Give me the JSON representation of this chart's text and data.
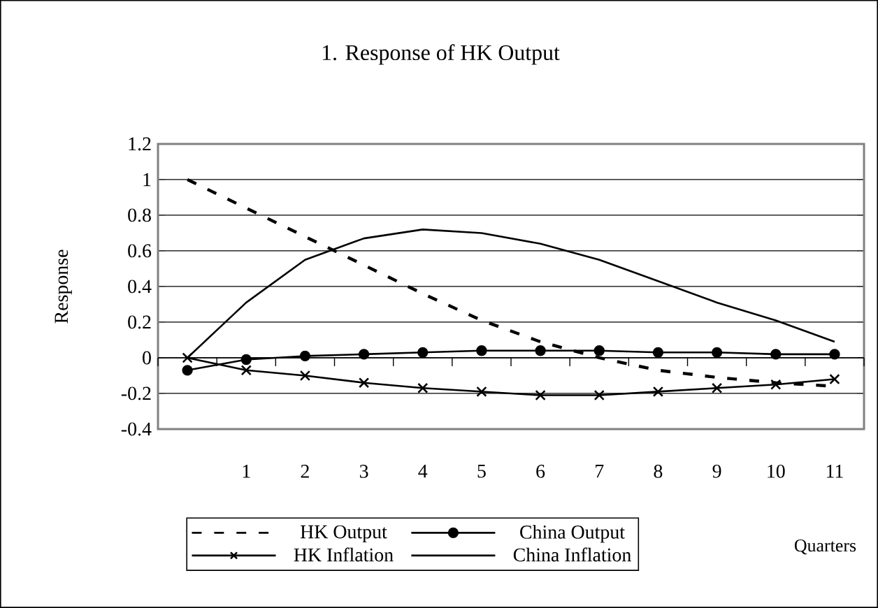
{
  "chart_data": {
    "type": "line",
    "title": "1. Response of HK Output",
    "xlabel": "Quarters",
    "ylabel": "Response",
    "categories": [
      null,
      "1",
      "2",
      "3",
      "4",
      "5",
      "6",
      "7",
      "8",
      "9",
      "10",
      "11"
    ],
    "series": [
      {
        "name": "HK Output",
        "color": "#000000",
        "line_style": "dashed",
        "marker": "none",
        "values": [
          1.0,
          0.84,
          0.68,
          0.52,
          0.36,
          0.21,
          0.09,
          0.0,
          -0.07,
          -0.11,
          -0.14,
          -0.16
        ]
      },
      {
        "name": "China Output",
        "color": "#000000",
        "line_style": "solid",
        "marker": "circle",
        "values": [
          -0.07,
          -0.01,
          0.01,
          0.02,
          0.03,
          0.04,
          0.04,
          0.04,
          0.03,
          0.03,
          0.02,
          0.02
        ]
      },
      {
        "name": "HK Inflation",
        "color": "#000000",
        "line_style": "solid",
        "marker": "cross",
        "values": [
          0.0,
          -0.07,
          -0.1,
          -0.14,
          -0.17,
          -0.19,
          -0.21,
          -0.21,
          -0.19,
          -0.17,
          -0.15,
          -0.12
        ]
      },
      {
        "name": "China Inflation",
        "color": "#000000",
        "line_style": "solid",
        "marker": "none",
        "values": [
          0.0,
          0.31,
          0.55,
          0.67,
          0.72,
          0.7,
          0.64,
          0.55,
          0.43,
          0.31,
          0.21,
          0.09
        ]
      }
    ],
    "ylim": [
      -0.4,
      1.2
    ],
    "yticks": [
      1.2,
      1,
      0.8,
      0.6,
      0.4,
      0.2,
      0,
      -0.2,
      -0.4
    ],
    "grid": "y",
    "legend": "bottom"
  }
}
